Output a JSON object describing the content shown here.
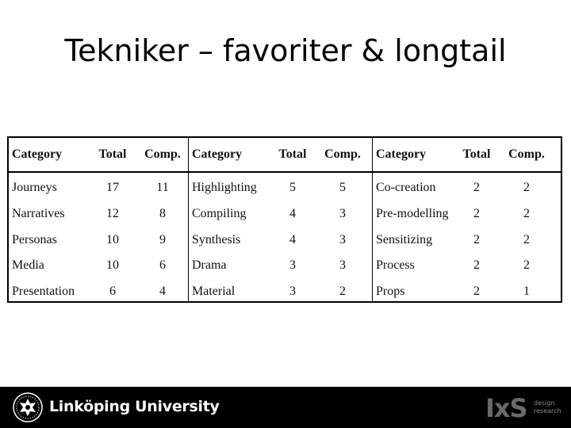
{
  "slide": {
    "title": "Tekniker – favoriter & longtail"
  },
  "table": {
    "groups": [
      {
        "headers": [
          "Category",
          "Total",
          "Comp."
        ],
        "rows": [
          [
            "Journeys",
            "17",
            "11"
          ],
          [
            "Narratives",
            "12",
            "8"
          ],
          [
            "Personas",
            "10",
            "9"
          ],
          [
            "Media",
            "10",
            "6"
          ],
          [
            "Presentation",
            "6",
            "4"
          ]
        ]
      },
      {
        "headers": [
          "Category",
          "Total",
          "Comp."
        ],
        "rows": [
          [
            "Highlighting",
            "5",
            "5"
          ],
          [
            "Compiling",
            "4",
            "3"
          ],
          [
            "Synthesis",
            "4",
            "3"
          ],
          [
            "Drama",
            "3",
            "3"
          ],
          [
            "Material",
            "3",
            "2"
          ]
        ]
      },
      {
        "headers": [
          "Category",
          "Total",
          "Comp."
        ],
        "rows": [
          [
            "Co-creation",
            "2",
            "2"
          ],
          [
            "Pre-modelling",
            "2",
            "2"
          ],
          [
            "Sensitizing",
            "2",
            "2"
          ],
          [
            "Process",
            "2",
            "2"
          ],
          [
            "Props",
            "2",
            "1"
          ]
        ]
      }
    ]
  },
  "footer": {
    "university_name": "Linköping University",
    "logo_icon": "liu-emblem-icon",
    "ixs_mark": "IxS",
    "ixs_sub_line1": "design",
    "ixs_sub_line2": "research"
  }
}
